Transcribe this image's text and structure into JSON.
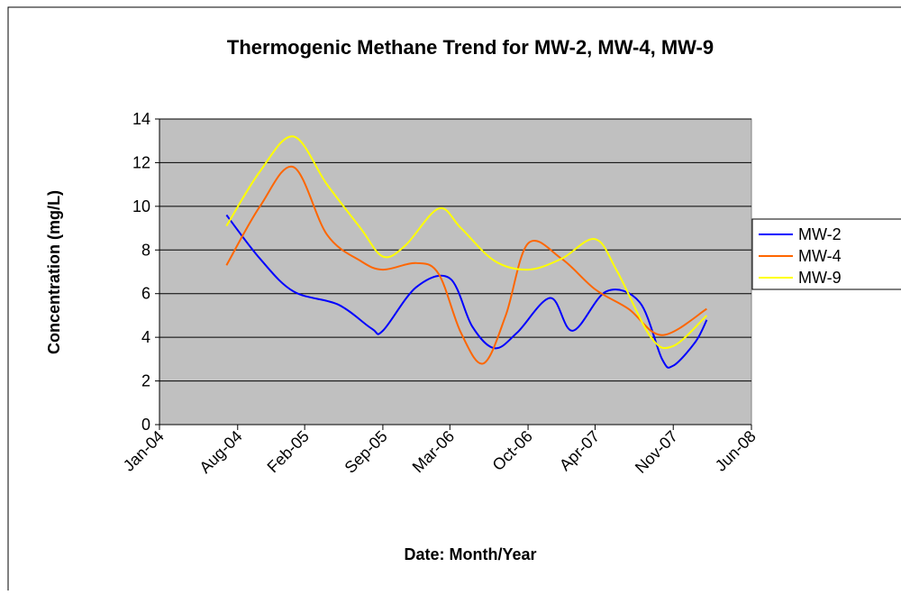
{
  "chart_data": {
    "type": "line",
    "title": "Thermogenic Methane Trend for MW-2, MW-4, MW-9",
    "xlabel": "Date: Month/Year",
    "ylabel": "Concentration (mg/L)",
    "xlim": [
      "2004-01",
      "2008-06"
    ],
    "xticks": [
      {
        "value": "2004-01",
        "label": "Jan-04"
      },
      {
        "value": "2004-08",
        "label": "Aug-04"
      },
      {
        "value": "2005-02",
        "label": "Feb-05"
      },
      {
        "value": "2005-09",
        "label": "Sep-05"
      },
      {
        "value": "2006-03",
        "label": "Mar-06"
      },
      {
        "value": "2006-10",
        "label": "Oct-06"
      },
      {
        "value": "2007-04",
        "label": "Apr-07"
      },
      {
        "value": "2007-11",
        "label": "Nov-07"
      },
      {
        "value": "2008-06",
        "label": "Jun-08"
      }
    ],
    "ylim": [
      0,
      14
    ],
    "yticks": [
      0,
      2,
      4,
      6,
      8,
      10,
      12,
      14
    ],
    "grid": true,
    "legend": "right",
    "plot_background": "#c0c0c0",
    "series": [
      {
        "name": "MW-2",
        "color": "#0000ff",
        "x": [
          "2004-07",
          "2004-10",
          "2005-01",
          "2005-05",
          "2005-08",
          "2005-09",
          "2005-12",
          "2006-03",
          "2006-05",
          "2006-07",
          "2006-09",
          "2006-12",
          "2007-02",
          "2007-05",
          "2007-08",
          "2007-10",
          "2007-11",
          "2008-01",
          "2008-02"
        ],
        "values": [
          9.6,
          7.6,
          6.1,
          5.5,
          4.4,
          4.3,
          6.3,
          6.7,
          4.5,
          3.5,
          4.2,
          5.8,
          4.3,
          6.1,
          5.6,
          3.0,
          2.7,
          3.8,
          4.8
        ]
      },
      {
        "name": "MW-4",
        "color": "#ff6600",
        "x": [
          "2004-07",
          "2004-10",
          "2005-01",
          "2005-04",
          "2005-07",
          "2005-09",
          "2005-12",
          "2006-02",
          "2006-04",
          "2006-06",
          "2006-08",
          "2006-10",
          "2007-01",
          "2007-04",
          "2007-07",
          "2007-10",
          "2008-02"
        ],
        "values": [
          7.3,
          10.0,
          11.8,
          8.7,
          7.5,
          7.1,
          7.4,
          6.9,
          4.2,
          2.8,
          5.0,
          8.3,
          7.6,
          6.2,
          5.3,
          4.1,
          5.3
        ]
      },
      {
        "name": "MW-9",
        "color": "#ffff00",
        "x": [
          "2004-07",
          "2004-10",
          "2005-01",
          "2005-04",
          "2005-07",
          "2005-09",
          "2005-11",
          "2006-02",
          "2006-04",
          "2006-07",
          "2006-10",
          "2007-01",
          "2007-04",
          "2007-06",
          "2007-09",
          "2007-11",
          "2008-02"
        ],
        "values": [
          9.1,
          11.6,
          13.2,
          11.0,
          9.0,
          7.7,
          8.2,
          9.9,
          9.0,
          7.5,
          7.1,
          7.6,
          8.5,
          7.0,
          4.0,
          3.6,
          5.0
        ]
      }
    ]
  }
}
